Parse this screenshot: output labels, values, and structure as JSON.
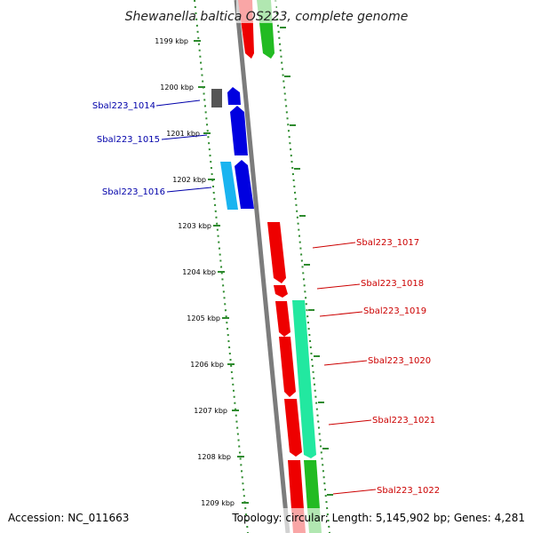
{
  "title": "Shewanella baltica OS223, complete genome",
  "accession": "Accession: NC_011663",
  "summary": "Topology: circular; Length: 5,145,902 bp; Genes: 4,281",
  "colors": {
    "backbone": "#7c7c7c",
    "ticks": "#2e8b2e",
    "forward_label": "#0000aa",
    "reverse_label": "#cc0000",
    "blue_gene": "#0000e0",
    "light_blue_gene": "#1ab4f0",
    "gray_gene": "#555555",
    "red_gene": "#ee0000",
    "green_gene": "#22bb22",
    "teal_gene": "#22e8a0"
  },
  "ticks": [
    "1199 kbp",
    "1200 kbp",
    "1201 kbp",
    "1202 kbp",
    "1203 kbp",
    "1204 kbp",
    "1205 kbp",
    "1206 kbp",
    "1207 kbp",
    "1208 kbp",
    "1209 kbp"
  ],
  "labels_left": [
    "Sbal223_1014",
    "Sbal223_1015",
    "Sbal223_1016"
  ],
  "labels_right": [
    "Sbal223_1017",
    "Sbal223_1018",
    "Sbal223_1019",
    "Sbal223_1020",
    "Sbal223_1021",
    "Sbal223_1022"
  ]
}
